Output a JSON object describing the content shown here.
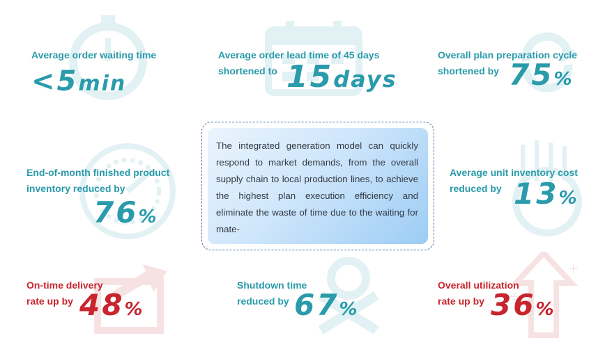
{
  "metrics": {
    "waiting": {
      "label": "Average order waiting time",
      "value": "<5",
      "unit": "min"
    },
    "lead": {
      "label_line1": "Average order lead time of 45 days",
      "label_line2": "shortened to",
      "value": "15",
      "unit": "days"
    },
    "plan": {
      "label_line1": "Overall plan preparation cycle",
      "label_line2": "shortened by",
      "value": "75",
      "unit": "%"
    },
    "finished": {
      "label_line1": "End-of-month finished product",
      "label_line2": "inventory reduced by",
      "value": "76",
      "unit": "%"
    },
    "unit_cost": {
      "label_line1": "Average unit inventory cost",
      "label_line2": "reduced by",
      "value": "13",
      "unit": "%"
    },
    "ontime": {
      "label_line1": "On-time delivery",
      "label_line2": "rate up by",
      "value": "48",
      "unit": "%"
    },
    "shutdown": {
      "label_line1": "Shutdown time",
      "label_line2": "reduced by",
      "value": "67",
      "unit": "%"
    },
    "utilization": {
      "label_line1": "Overall utilization",
      "label_line2": "rate up by",
      "value": "36",
      "unit": "%"
    }
  },
  "center": {
    "text": "The integrated generation model can quickly respond to market demands, from the overall supply chain to local production lines, to achieve the highest plan execution efficiency and eliminate the waste of time due to the waiting for mate-"
  },
  "colors": {
    "teal": "#2a9bab",
    "red": "#c8252e",
    "box_border": "#4a6fa8"
  },
  "icons": [
    "stopwatch-icon",
    "calendar-icon",
    "cycle-arrows-icon",
    "gauge-icon",
    "coins-icon",
    "delivery-arrow-icon",
    "wrench-icon",
    "growth-arrow-icon"
  ]
}
